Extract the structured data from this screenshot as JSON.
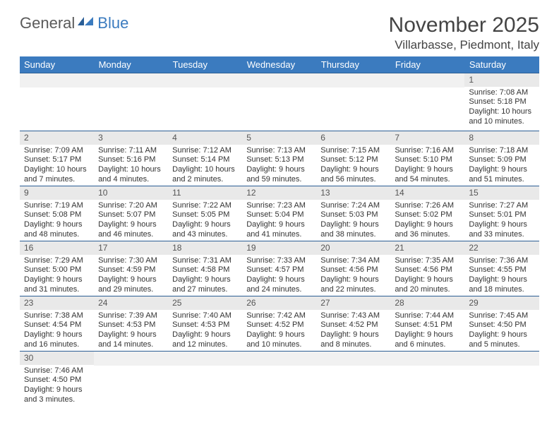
{
  "logo": {
    "word1": "General",
    "word2": "Blue"
  },
  "title": "November 2025",
  "location": "Villarbasse, Piedmont, Italy",
  "colors": {
    "header_bg": "#3b7bbf",
    "header_text": "#ffffff",
    "day_bar_bg": "#e9e9e9",
    "row_divider": "#2c5f95",
    "body_text": "#333333"
  },
  "day_labels": [
    "Sunday",
    "Monday",
    "Tuesday",
    "Wednesday",
    "Thursday",
    "Friday",
    "Saturday"
  ],
  "weeks": [
    [
      {
        "blank": true
      },
      {
        "blank": true
      },
      {
        "blank": true
      },
      {
        "blank": true
      },
      {
        "blank": true
      },
      {
        "blank": true
      },
      {
        "num": "1",
        "sunrise": "Sunrise: 7:08 AM",
        "sunset": "Sunset: 5:18 PM",
        "daylight1": "Daylight: 10 hours",
        "daylight2": "and 10 minutes."
      }
    ],
    [
      {
        "num": "2",
        "sunrise": "Sunrise: 7:09 AM",
        "sunset": "Sunset: 5:17 PM",
        "daylight1": "Daylight: 10 hours",
        "daylight2": "and 7 minutes."
      },
      {
        "num": "3",
        "sunrise": "Sunrise: 7:11 AM",
        "sunset": "Sunset: 5:16 PM",
        "daylight1": "Daylight: 10 hours",
        "daylight2": "and 4 minutes."
      },
      {
        "num": "4",
        "sunrise": "Sunrise: 7:12 AM",
        "sunset": "Sunset: 5:14 PM",
        "daylight1": "Daylight: 10 hours",
        "daylight2": "and 2 minutes."
      },
      {
        "num": "5",
        "sunrise": "Sunrise: 7:13 AM",
        "sunset": "Sunset: 5:13 PM",
        "daylight1": "Daylight: 9 hours",
        "daylight2": "and 59 minutes."
      },
      {
        "num": "6",
        "sunrise": "Sunrise: 7:15 AM",
        "sunset": "Sunset: 5:12 PM",
        "daylight1": "Daylight: 9 hours",
        "daylight2": "and 56 minutes."
      },
      {
        "num": "7",
        "sunrise": "Sunrise: 7:16 AM",
        "sunset": "Sunset: 5:10 PM",
        "daylight1": "Daylight: 9 hours",
        "daylight2": "and 54 minutes."
      },
      {
        "num": "8",
        "sunrise": "Sunrise: 7:18 AM",
        "sunset": "Sunset: 5:09 PM",
        "daylight1": "Daylight: 9 hours",
        "daylight2": "and 51 minutes."
      }
    ],
    [
      {
        "num": "9",
        "sunrise": "Sunrise: 7:19 AM",
        "sunset": "Sunset: 5:08 PM",
        "daylight1": "Daylight: 9 hours",
        "daylight2": "and 48 minutes."
      },
      {
        "num": "10",
        "sunrise": "Sunrise: 7:20 AM",
        "sunset": "Sunset: 5:07 PM",
        "daylight1": "Daylight: 9 hours",
        "daylight2": "and 46 minutes."
      },
      {
        "num": "11",
        "sunrise": "Sunrise: 7:22 AM",
        "sunset": "Sunset: 5:05 PM",
        "daylight1": "Daylight: 9 hours",
        "daylight2": "and 43 minutes."
      },
      {
        "num": "12",
        "sunrise": "Sunrise: 7:23 AM",
        "sunset": "Sunset: 5:04 PM",
        "daylight1": "Daylight: 9 hours",
        "daylight2": "and 41 minutes."
      },
      {
        "num": "13",
        "sunrise": "Sunrise: 7:24 AM",
        "sunset": "Sunset: 5:03 PM",
        "daylight1": "Daylight: 9 hours",
        "daylight2": "and 38 minutes."
      },
      {
        "num": "14",
        "sunrise": "Sunrise: 7:26 AM",
        "sunset": "Sunset: 5:02 PM",
        "daylight1": "Daylight: 9 hours",
        "daylight2": "and 36 minutes."
      },
      {
        "num": "15",
        "sunrise": "Sunrise: 7:27 AM",
        "sunset": "Sunset: 5:01 PM",
        "daylight1": "Daylight: 9 hours",
        "daylight2": "and 33 minutes."
      }
    ],
    [
      {
        "num": "16",
        "sunrise": "Sunrise: 7:29 AM",
        "sunset": "Sunset: 5:00 PM",
        "daylight1": "Daylight: 9 hours",
        "daylight2": "and 31 minutes."
      },
      {
        "num": "17",
        "sunrise": "Sunrise: 7:30 AM",
        "sunset": "Sunset: 4:59 PM",
        "daylight1": "Daylight: 9 hours",
        "daylight2": "and 29 minutes."
      },
      {
        "num": "18",
        "sunrise": "Sunrise: 7:31 AM",
        "sunset": "Sunset: 4:58 PM",
        "daylight1": "Daylight: 9 hours",
        "daylight2": "and 27 minutes."
      },
      {
        "num": "19",
        "sunrise": "Sunrise: 7:33 AM",
        "sunset": "Sunset: 4:57 PM",
        "daylight1": "Daylight: 9 hours",
        "daylight2": "and 24 minutes."
      },
      {
        "num": "20",
        "sunrise": "Sunrise: 7:34 AM",
        "sunset": "Sunset: 4:56 PM",
        "daylight1": "Daylight: 9 hours",
        "daylight2": "and 22 minutes."
      },
      {
        "num": "21",
        "sunrise": "Sunrise: 7:35 AM",
        "sunset": "Sunset: 4:56 PM",
        "daylight1": "Daylight: 9 hours",
        "daylight2": "and 20 minutes."
      },
      {
        "num": "22",
        "sunrise": "Sunrise: 7:36 AM",
        "sunset": "Sunset: 4:55 PM",
        "daylight1": "Daylight: 9 hours",
        "daylight2": "and 18 minutes."
      }
    ],
    [
      {
        "num": "23",
        "sunrise": "Sunrise: 7:38 AM",
        "sunset": "Sunset: 4:54 PM",
        "daylight1": "Daylight: 9 hours",
        "daylight2": "and 16 minutes."
      },
      {
        "num": "24",
        "sunrise": "Sunrise: 7:39 AM",
        "sunset": "Sunset: 4:53 PM",
        "daylight1": "Daylight: 9 hours",
        "daylight2": "and 14 minutes."
      },
      {
        "num": "25",
        "sunrise": "Sunrise: 7:40 AM",
        "sunset": "Sunset: 4:53 PM",
        "daylight1": "Daylight: 9 hours",
        "daylight2": "and 12 minutes."
      },
      {
        "num": "26",
        "sunrise": "Sunrise: 7:42 AM",
        "sunset": "Sunset: 4:52 PM",
        "daylight1": "Daylight: 9 hours",
        "daylight2": "and 10 minutes."
      },
      {
        "num": "27",
        "sunrise": "Sunrise: 7:43 AM",
        "sunset": "Sunset: 4:52 PM",
        "daylight1": "Daylight: 9 hours",
        "daylight2": "and 8 minutes."
      },
      {
        "num": "28",
        "sunrise": "Sunrise: 7:44 AM",
        "sunset": "Sunset: 4:51 PM",
        "daylight1": "Daylight: 9 hours",
        "daylight2": "and 6 minutes."
      },
      {
        "num": "29",
        "sunrise": "Sunrise: 7:45 AM",
        "sunset": "Sunset: 4:50 PM",
        "daylight1": "Daylight: 9 hours",
        "daylight2": "and 5 minutes."
      }
    ],
    [
      {
        "num": "30",
        "sunrise": "Sunrise: 7:46 AM",
        "sunset": "Sunset: 4:50 PM",
        "daylight1": "Daylight: 9 hours",
        "daylight2": "and 3 minutes."
      },
      {
        "blank": true
      },
      {
        "blank": true
      },
      {
        "blank": true
      },
      {
        "blank": true
      },
      {
        "blank": true
      },
      {
        "blank": true
      }
    ]
  ]
}
